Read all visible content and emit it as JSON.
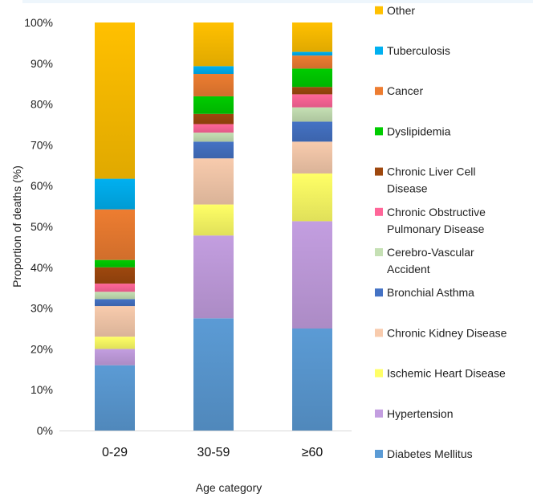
{
  "chart_data": {
    "type": "bar",
    "stacked": true,
    "normalized": true,
    "categories": [
      "0-29",
      "30-59",
      "≥60"
    ],
    "xlabel": "Age category",
    "ylabel": "Proportion of deaths (%)",
    "ylim": [
      0,
      100
    ],
    "yticks": [
      "0%",
      "10%",
      "20%",
      "30%",
      "40%",
      "50%",
      "60%",
      "70%",
      "80%",
      "90%",
      "100%"
    ],
    "grid": false,
    "legend_position": "right",
    "series": [
      {
        "name": "Diabetes Mellitus",
        "color": "#5B9BD5",
        "values": [
          16,
          27.5,
          25
        ]
      },
      {
        "name": "Hypertension",
        "color": "#C39EE0",
        "values": [
          4,
          20.3,
          26.3
        ]
      },
      {
        "name": "Ischemic Heart Disease",
        "color": "#FFFF66",
        "values": [
          3,
          7.6,
          11.7
        ]
      },
      {
        "name": "Chronic Kidney Disease",
        "color": "#F8CBAD",
        "values": [
          7.5,
          11.3,
          7.8
        ]
      },
      {
        "name": "Bronchial Asthma",
        "color": "#4472C4",
        "values": [
          1.7,
          4.1,
          4.9
        ]
      },
      {
        "name": "Cerebro-Vascular Accident",
        "color": "#C5E0B4",
        "values": [
          1.8,
          2.2,
          3.5
        ]
      },
      {
        "name": "Chronic Obstructive Pulmonary Disease",
        "color": "#FF6699",
        "values": [
          2,
          2.1,
          3.2
        ]
      },
      {
        "name": "Chronic Liver Cell Disease",
        "color": "#9E480E",
        "values": [
          4,
          2.5,
          1.8
        ]
      },
      {
        "name": "Dyslipidemia",
        "color": "#00CC00",
        "values": [
          1.8,
          4.3,
          4.5
        ]
      },
      {
        "name": "Cancer",
        "color": "#ED7D31",
        "values": [
          12.4,
          5.5,
          3.2
        ]
      },
      {
        "name": "Tuberculosis",
        "color": "#00B0F0",
        "values": [
          7.5,
          1.9,
          0.9
        ]
      },
      {
        "name": "Other",
        "color": "#FFC000",
        "values": [
          38.3,
          10.7,
          7.2
        ]
      }
    ]
  }
}
